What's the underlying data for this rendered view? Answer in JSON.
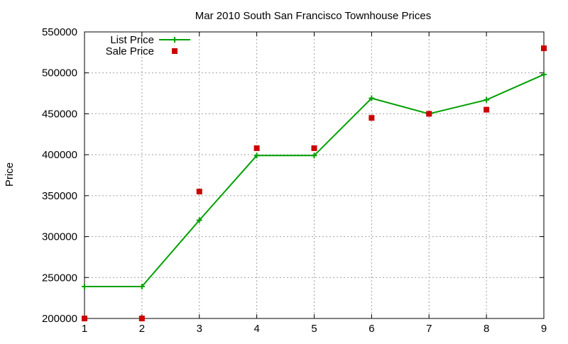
{
  "chart_data": {
    "type": "line",
    "title": "Mar 2010 South San Francisco Townhouse Prices",
    "xlabel": "",
    "ylabel": "Price",
    "xlim": [
      1,
      9
    ],
    "ylim": [
      200000,
      550000
    ],
    "x_ticks": [
      "1",
      "2",
      "3",
      "4",
      "5",
      "6",
      "7",
      "8",
      "9"
    ],
    "y_ticks": [
      "200000",
      "250000",
      "300000",
      "350000",
      "400000",
      "450000",
      "500000",
      "550000"
    ],
    "grid": true,
    "legend_position": "top-left",
    "series": [
      {
        "name": "List Price",
        "style": "line-with-plus-markers",
        "color": "#00a000",
        "x": [
          1,
          2,
          3,
          4,
          5,
          6,
          7,
          8,
          9
        ],
        "values": [
          239000,
          239000,
          320000,
          399000,
          399000,
          469000,
          450000,
          467000,
          498000
        ]
      },
      {
        "name": "Sale Price",
        "style": "square-points",
        "color": "#cc0000",
        "x": [
          1,
          2,
          3,
          4,
          5,
          6,
          7,
          8,
          9
        ],
        "values": [
          200000,
          200000,
          355000,
          408000,
          408000,
          445000,
          450000,
          455000,
          530000
        ]
      }
    ]
  }
}
